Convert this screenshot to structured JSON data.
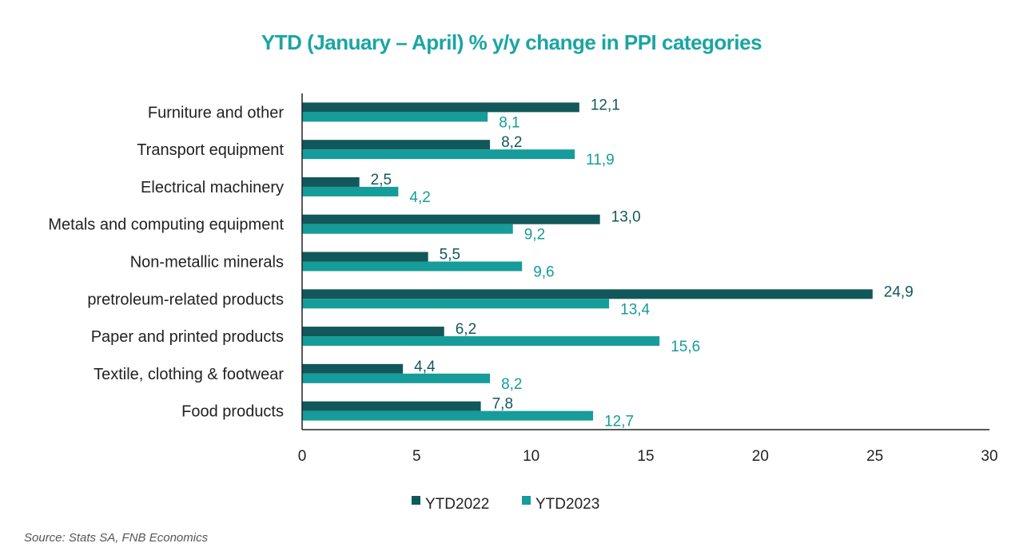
{
  "chart_data": {
    "type": "bar",
    "orientation": "horizontal",
    "title": "YTD (January – April) % y/y change in PPI categories",
    "categories": [
      "Furniture and other",
      "Transport equipment",
      "Electrical machinery",
      "Metals and computing equipment",
      "Non-metallic minerals",
      "pretroleum-related products",
      "Paper and printed products",
      "Textile, clothing & footwear",
      "Food products"
    ],
    "series": [
      {
        "name": "YTD2022",
        "color": "#12585a",
        "values": [
          12.1,
          8.2,
          2.5,
          13.0,
          5.5,
          24.9,
          6.2,
          4.4,
          7.8
        ],
        "labels": [
          "12,1",
          "8,2",
          "2,5",
          "13,0",
          "5,5",
          "24,9",
          "6,2",
          "4,4",
          "7,8"
        ]
      },
      {
        "name": "YTD2023",
        "color": "#169c9a",
        "values": [
          8.1,
          11.9,
          4.2,
          9.2,
          9.6,
          13.4,
          15.6,
          8.2,
          12.7
        ],
        "labels": [
          "8,1",
          "11,9",
          "4,2",
          "9,2",
          "9,6",
          "13,4",
          "15,6",
          "8,2",
          "12,7"
        ]
      }
    ],
    "xlim": [
      0,
      30
    ],
    "xticks": [
      "0",
      "5",
      "10",
      "15",
      "20",
      "25",
      "30"
    ],
    "grid": false,
    "legend": "bottom",
    "source": "Source: Stats SA, FNB Economics"
  }
}
